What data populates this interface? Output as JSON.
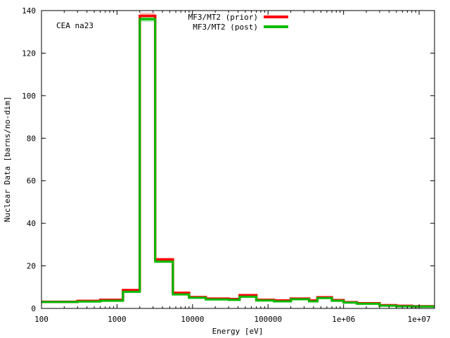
{
  "chart_data": {
    "type": "line",
    "step": true,
    "annotation": "CEA na23",
    "xlabel": "Energy [eV]",
    "ylabel": "Nuclear Data [barns/no-dim]",
    "xscale": "log",
    "xlim": [
      100,
      16000000
    ],
    "ylim": [
      0,
      140
    ],
    "xticks": [
      {
        "value": 100,
        "label": "100"
      },
      {
        "value": 1000,
        "label": "1000"
      },
      {
        "value": 10000,
        "label": "10000"
      },
      {
        "value": 100000,
        "label": "100000"
      },
      {
        "value": 1000000,
        "label": "1e+06"
      },
      {
        "value": 10000000,
        "label": "1e+07"
      }
    ],
    "yticks": [
      0,
      20,
      40,
      60,
      80,
      100,
      120,
      140
    ],
    "grid": false,
    "legend_position": "top-center",
    "bin_edges": [
      100,
      300,
      600,
      1200,
      2000,
      3200,
      5500,
      9000,
      15000,
      30000,
      42000,
      70000,
      120000,
      200000,
      350000,
      450000,
      700000,
      1000000,
      1500000,
      3000000,
      5000000,
      8000000,
      16000000
    ],
    "series": [
      {
        "name": "MF3/MT2 (prior)",
        "color": "#ff0000",
        "band_color": "#ffb3b3",
        "band_halfwidth": [
          0.2,
          0.2,
          0.2,
          0.3,
          1.5,
          0.8,
          0.4,
          0.3,
          0.3,
          0.3,
          0.4,
          0.2,
          0.2,
          0.2,
          0.2,
          0.2,
          0.2,
          0.2,
          0.2,
          0.1,
          0.1,
          0.1
        ],
        "values": [
          3.1,
          3.5,
          4.0,
          8.6,
          137.5,
          23.0,
          7.3,
          5.3,
          4.6,
          4.4,
          6.2,
          4.0,
          3.7,
          4.6,
          3.7,
          5.2,
          3.9,
          2.9,
          2.4,
          1.5,
          1.2,
          1.0
        ]
      },
      {
        "name": "MF3/MT2 (post)",
        "color": "#00bb00",
        "band_color": "#99e699",
        "band_halfwidth": [
          0.1,
          0.1,
          0.1,
          0.2,
          1.2,
          0.6,
          0.3,
          0.2,
          0.2,
          0.2,
          0.3,
          0.1,
          0.1,
          0.1,
          0.1,
          0.1,
          0.1,
          0.1,
          0.1,
          0.1,
          0.1,
          0.1
        ],
        "values": [
          3.0,
          3.2,
          3.6,
          7.8,
          136.0,
          22.0,
          6.6,
          5.0,
          4.2,
          4.0,
          5.5,
          3.7,
          3.3,
          4.3,
          3.3,
          4.9,
          3.6,
          2.7,
          2.2,
          1.3,
          1.0,
          0.9
        ]
      }
    ]
  }
}
